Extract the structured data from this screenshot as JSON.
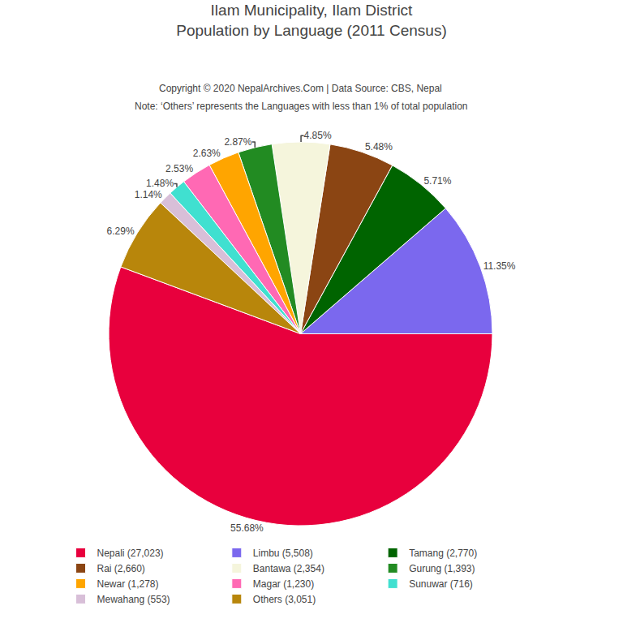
{
  "chart_data": {
    "type": "pie",
    "title": "Ilam Municipality, Ilam District",
    "subtitle": "Population by Language (2011 Census)",
    "annotations": [
      "Copyright © 2020 NepalArchives.Com | Data Source: CBS, Nepal",
      "Note: ‘Others’ represents the Languages with less than 1% of total population"
    ],
    "categories": [
      "Nepali (27,023)",
      "Limbu (5,508)",
      "Tamang (2,770)",
      "Rai (2,660)",
      "Bantawa (2,354)",
      "Gurung (1,393)",
      "Newar (1,278)",
      "Magar (1,230)",
      "Sunuwar (716)",
      "Mewahang (553)",
      "Others (3,051)"
    ],
    "values": [
      55.68,
      11.35,
      5.71,
      5.48,
      4.85,
      2.87,
      2.63,
      2.53,
      1.48,
      1.14,
      6.29
    ],
    "value_labels": [
      "55.68%",
      "11.35%",
      "5.71%",
      "5.48%",
      "4.85%",
      "2.87%",
      "2.63%",
      "2.53%",
      "1.48%",
      "1.14%",
      "6.29%"
    ],
    "colors": [
      "#E8003D",
      "#7B68EE",
      "#006400",
      "#8B4513",
      "#F5F5DC",
      "#228B22",
      "#FFA500",
      "#FF69B4",
      "#40E0D0",
      "#D8BFD8",
      "#B8860B"
    ],
    "data_labels": true,
    "legend": "bottom"
  }
}
